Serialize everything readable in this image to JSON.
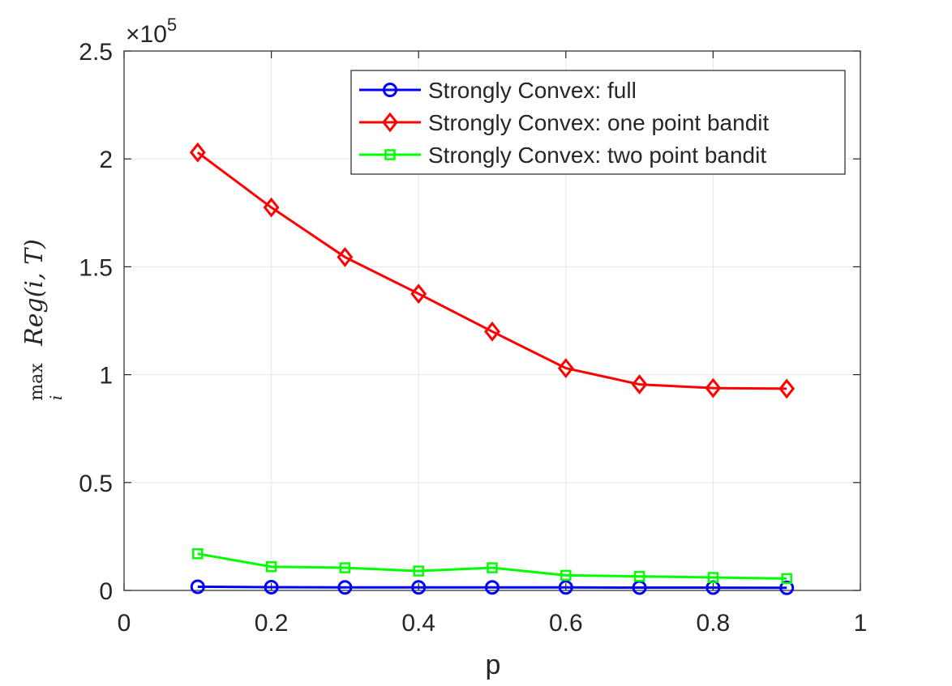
{
  "chart_data": {
    "type": "line",
    "xlabel": "p",
    "ylabel": {
      "operator": "max",
      "subscript": "i",
      "expression": "Reg(i, T)"
    },
    "y_exponent": {
      "base": "×10",
      "power": "5"
    },
    "xlim": [
      0,
      1
    ],
    "ylim": [
      0,
      2.5
    ],
    "x_ticks": [
      0,
      0.2,
      0.4,
      0.6,
      0.8,
      1
    ],
    "x_tick_labels": [
      "0",
      "0.2",
      "0.4",
      "0.6",
      "0.8",
      "1"
    ],
    "y_ticks": [
      0,
      0.5,
      1,
      1.5,
      2,
      2.5
    ],
    "y_tick_labels": [
      "0",
      "0.5",
      "1",
      "1.5",
      "2",
      "2.5"
    ],
    "grid": true,
    "legend_position": "top-right",
    "x": [
      0.1,
      0.2,
      0.3,
      0.4,
      0.5,
      0.6,
      0.7,
      0.8,
      0.9
    ],
    "series": [
      {
        "name": "Strongly Convex: full",
        "color": "#0000ff",
        "marker": "circle",
        "values": [
          0.017,
          0.015,
          0.014,
          0.014,
          0.014,
          0.014,
          0.013,
          0.013,
          0.012
        ]
      },
      {
        "name": "Strongly Convex: one point bandit",
        "color": "#ff0000",
        "marker": "diamond",
        "values": [
          2.03,
          1.775,
          1.545,
          1.375,
          1.2,
          1.03,
          0.955,
          0.938,
          0.935
        ]
      },
      {
        "name": "Strongly Convex: two point bandit",
        "color": "#00ff00",
        "marker": "square",
        "values": [
          0.17,
          0.11,
          0.105,
          0.09,
          0.105,
          0.07,
          0.065,
          0.06,
          0.055
        ]
      }
    ]
  }
}
